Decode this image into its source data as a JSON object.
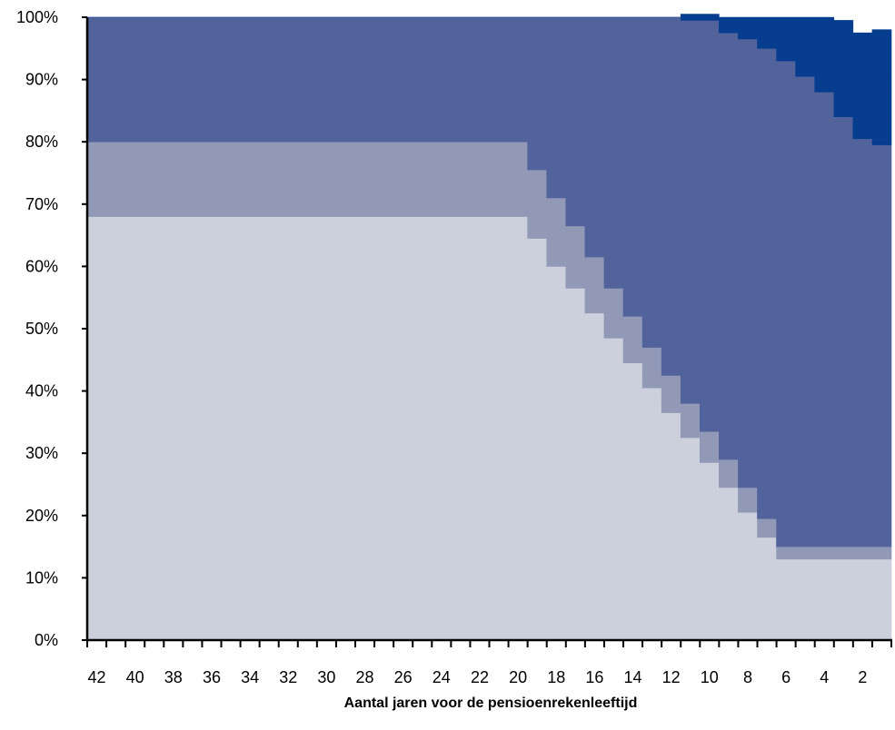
{
  "chart_data": {
    "type": "area",
    "stacked": true,
    "step": true,
    "xlabel": "Aantal jaren voor de pensioenrekenleeftijd",
    "ylabel": "",
    "x_tick_labels": [
      "42",
      "40",
      "38",
      "36",
      "34",
      "32",
      "30",
      "28",
      "26",
      "24",
      "22",
      "20",
      "18",
      "16",
      "14",
      "12",
      "10",
      "8",
      "6",
      "4",
      "2"
    ],
    "y_tick_labels": [
      "0%",
      "10%",
      "20%",
      "30%",
      "40%",
      "50%",
      "60%",
      "70%",
      "80%",
      "90%",
      "100%"
    ],
    "xlim": [
      42,
      1
    ],
    "ylim": [
      0,
      100
    ],
    "x_years": [
      42,
      41,
      40,
      39,
      38,
      37,
      36,
      35,
      34,
      33,
      32,
      31,
      30,
      29,
      28,
      27,
      26,
      25,
      24,
      23,
      22,
      21,
      20,
      19,
      18,
      17,
      16,
      15,
      14,
      13,
      12,
      11,
      10,
      9,
      8,
      7,
      6,
      5,
      4,
      3,
      2,
      1
    ],
    "series": [
      {
        "color": "#cbd0dc",
        "values": [
          68,
          68,
          68,
          68,
          68,
          68,
          68,
          68,
          68,
          68,
          68,
          68,
          68,
          68,
          68,
          68,
          68,
          68,
          68,
          68,
          68,
          68,
          68,
          64.5,
          60,
          56.5,
          52.5,
          48.5,
          44.5,
          40.5,
          36.5,
          32.5,
          28.5,
          24.5,
          20.5,
          16.5,
          13,
          13,
          13,
          13,
          13,
          13
        ]
      },
      {
        "color": "#9199b6",
        "values": [
          12,
          12,
          12,
          12,
          12,
          12,
          12,
          12,
          12,
          12,
          12,
          12,
          12,
          12,
          12,
          12,
          12,
          12,
          12,
          12,
          12,
          12,
          12,
          11,
          11,
          10,
          9,
          8,
          7.5,
          6.5,
          6,
          5.5,
          5,
          4.5,
          4,
          3,
          2,
          2,
          2,
          2,
          2,
          2
        ]
      },
      {
        "color": "#52639c",
        "values": [
          20,
          20,
          20,
          20,
          20,
          20,
          20,
          20,
          20,
          20,
          20,
          20,
          20,
          20,
          20,
          20,
          20,
          20,
          20,
          20,
          20,
          20,
          20,
          24.5,
          29,
          33.5,
          38.5,
          43.5,
          48,
          53,
          57.5,
          61.5,
          66,
          68.5,
          72,
          75.5,
          78,
          75.5,
          73,
          69,
          65.5,
          64.5
        ]
      },
      {
        "color": "#063d8f",
        "values": [
          0,
          0,
          0,
          0,
          0,
          0,
          0,
          0,
          0,
          0,
          0,
          0,
          0,
          0,
          0,
          0,
          0,
          0,
          0,
          0,
          0,
          0,
          0,
          0,
          0,
          0,
          0,
          0,
          0,
          0,
          0,
          1,
          1,
          2.5,
          3.5,
          5,
          7,
          9.5,
          12,
          15.5,
          17,
          18.5
        ]
      }
    ]
  }
}
